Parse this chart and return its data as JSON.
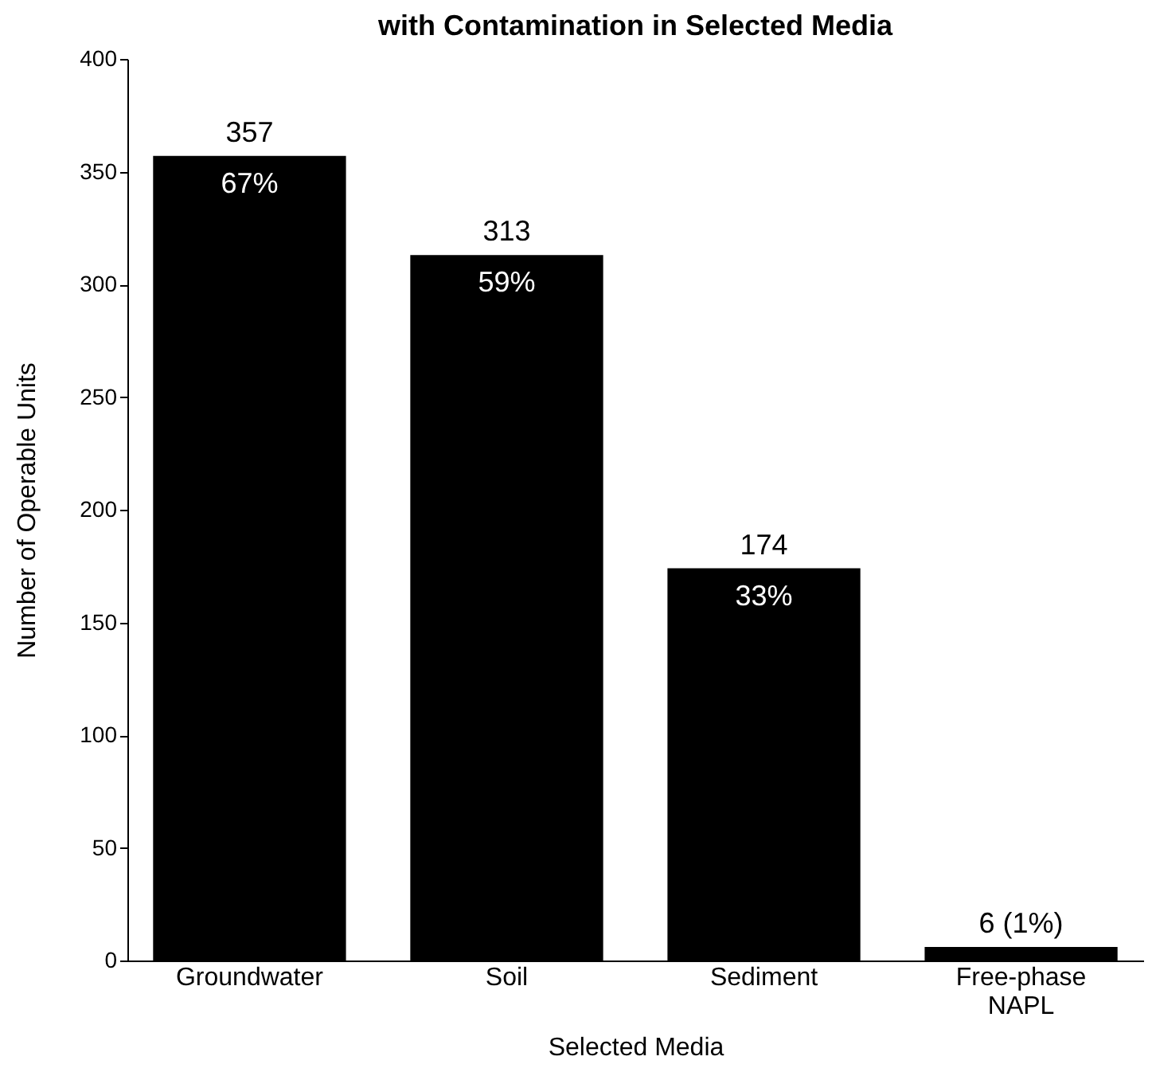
{
  "chart_data": {
    "type": "bar",
    "title": "with Contamination in Selected Media",
    "xlabel": "Selected Media",
    "ylabel": "Number of Operable Units",
    "categories": [
      "Groundwater",
      "Soil",
      "Sediment",
      "Free-phase NAPL"
    ],
    "values": [
      357,
      313,
      174,
      6
    ],
    "color": "#000000",
    "value_labels": [
      "357",
      "313",
      "174",
      "6 (1%)"
    ],
    "annotations": [
      {
        "text": "67%",
        "x": "Groundwater",
        "y": 357
      },
      {
        "text": "59%",
        "x": "Soil",
        "y": 313
      },
      {
        "text": "33%",
        "x": "Sediment",
        "y": 174
      }
    ],
    "ylim": [
      0,
      400
    ],
    "yticks": [
      0,
      50,
      100,
      150,
      200,
      250,
      300,
      350,
      400
    ],
    "grid": false
  }
}
